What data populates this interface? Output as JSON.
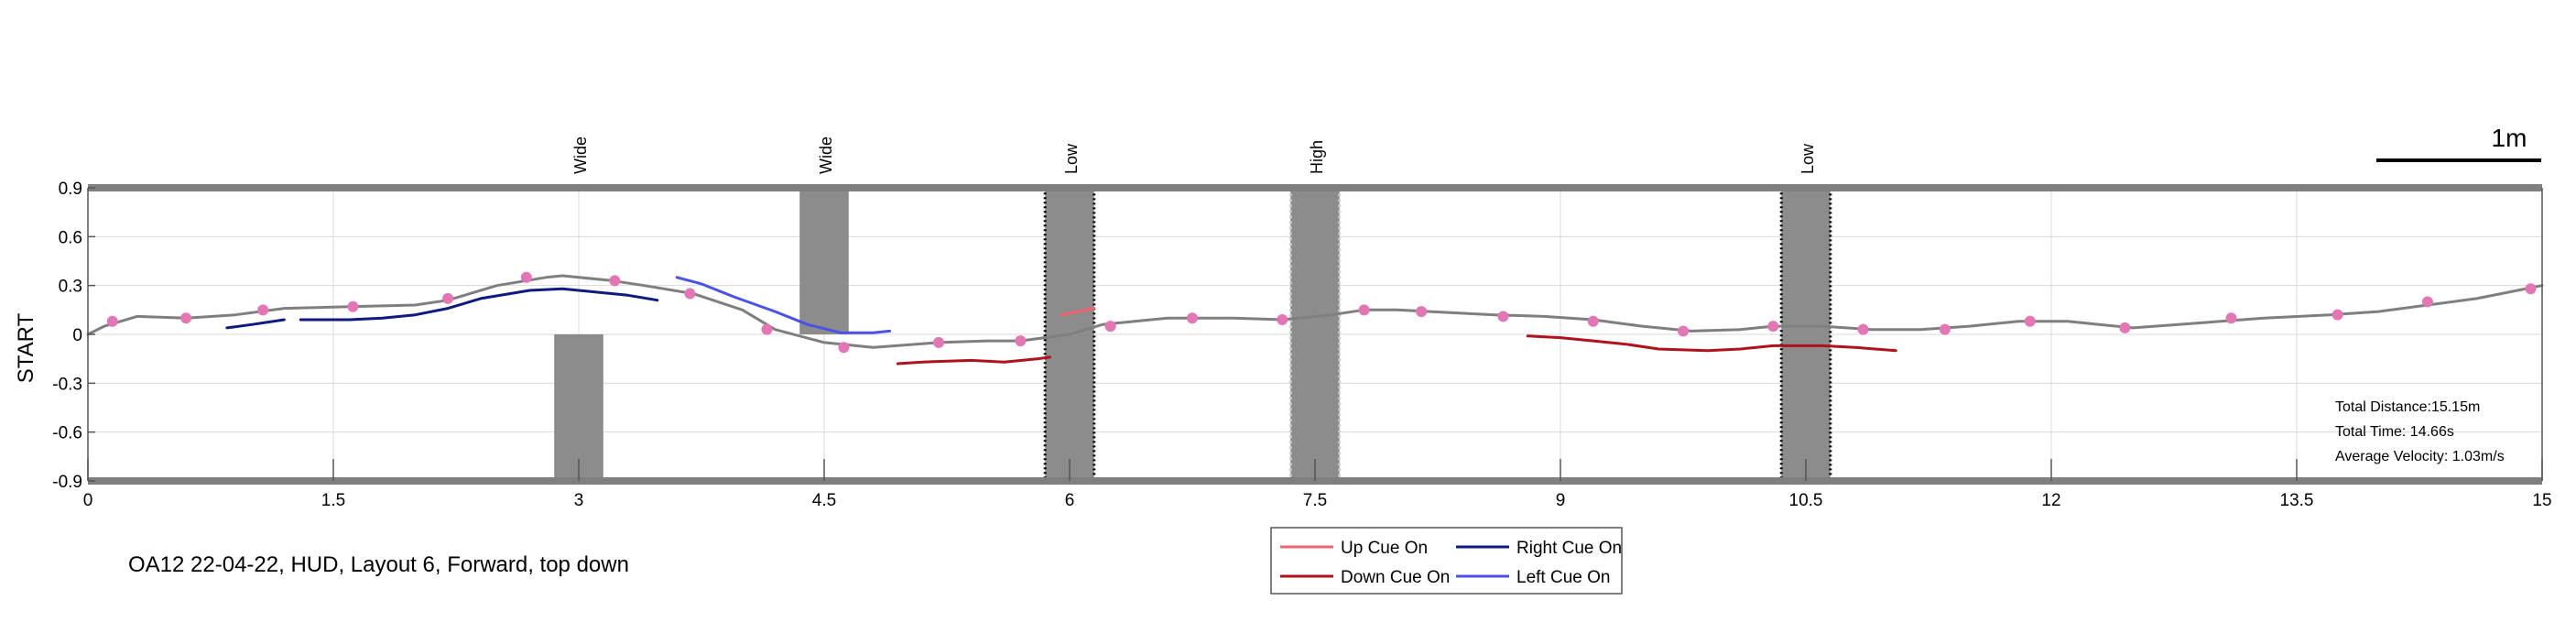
{
  "chart_data": {
    "type": "line",
    "xlim": [
      0,
      15
    ],
    "ylim": [
      -0.9,
      0.9
    ],
    "xticks": [
      "0",
      "1.5",
      "3",
      "4.5",
      "6",
      "7.5",
      "9",
      "10.5",
      "12",
      "13.5",
      "15"
    ],
    "xtick_values": [
      0,
      1.5,
      3,
      4.5,
      6,
      7.5,
      9,
      10.5,
      12,
      13.5,
      15
    ],
    "yticks": [
      "0.9",
      "0.6",
      "0.3",
      "0",
      "-0.3",
      "-0.6",
      "-0.9"
    ],
    "ytick_values": [
      0.9,
      0.6,
      0.3,
      0,
      -0.3,
      -0.6,
      -0.9
    ],
    "ylabel": "START",
    "grid": true,
    "caption": "OA12 22-04-22, HUD, Layout 6, Forward, top down",
    "scale_bar_label": "1m",
    "scale_bar_length": 1,
    "stats": [
      "Total Distance:15.15m",
      "Total Time: 14.66s",
      "Average Velocity: 1.03m/s"
    ],
    "obstacles": [
      {
        "label": "Wide",
        "x": [
          2.85,
          3.15
        ],
        "y": [
          -0.9,
          0.0
        ],
        "style": "plain"
      },
      {
        "label": "Wide",
        "x": [
          4.35,
          4.65
        ],
        "y": [
          0.0,
          0.9
        ],
        "style": "plain"
      },
      {
        "label": "Low",
        "x": [
          5.85,
          6.15
        ],
        "y": [
          -0.9,
          0.9
        ],
        "style": "dotted-dark"
      },
      {
        "label": "High",
        "x": [
          7.35,
          7.65
        ],
        "y": [
          -0.9,
          0.9
        ],
        "style": "dotted-light"
      },
      {
        "label": "Low",
        "x": [
          10.35,
          10.65
        ],
        "y": [
          -0.9,
          0.9
        ],
        "style": "dotted-dark"
      }
    ],
    "series": [
      {
        "name": "",
        "color": "#7f7f7f",
        "points": [
          [
            0.0,
            0.0
          ],
          [
            0.1,
            0.05
          ],
          [
            0.3,
            0.11
          ],
          [
            0.6,
            0.1
          ],
          [
            0.9,
            0.12
          ],
          [
            1.2,
            0.16
          ],
          [
            1.6,
            0.17
          ],
          [
            2.0,
            0.18
          ],
          [
            2.2,
            0.21
          ],
          [
            2.5,
            0.3
          ],
          [
            2.8,
            0.35
          ],
          [
            2.9,
            0.36
          ],
          [
            3.2,
            0.33
          ],
          [
            3.4,
            0.3
          ],
          [
            3.7,
            0.25
          ],
          [
            4.0,
            0.15
          ],
          [
            4.2,
            0.03
          ],
          [
            4.5,
            -0.05
          ],
          [
            4.8,
            -0.08
          ],
          [
            5.2,
            -0.05
          ],
          [
            5.5,
            -0.04
          ],
          [
            5.7,
            -0.04
          ],
          [
            6.0,
            0.0
          ],
          [
            6.2,
            0.06
          ],
          [
            6.6,
            0.1
          ],
          [
            7.0,
            0.1
          ],
          [
            7.3,
            0.09
          ],
          [
            7.6,
            0.12
          ],
          [
            7.8,
            0.15
          ],
          [
            8.0,
            0.15
          ],
          [
            8.2,
            0.14
          ],
          [
            8.6,
            0.12
          ],
          [
            8.9,
            0.11
          ],
          [
            9.2,
            0.09
          ],
          [
            9.5,
            0.05
          ],
          [
            9.8,
            0.02
          ],
          [
            10.1,
            0.03
          ],
          [
            10.3,
            0.05
          ],
          [
            10.6,
            0.05
          ],
          [
            10.9,
            0.03
          ],
          [
            11.2,
            0.03
          ],
          [
            11.5,
            0.05
          ],
          [
            11.8,
            0.08
          ],
          [
            12.1,
            0.08
          ],
          [
            12.5,
            0.04
          ],
          [
            12.9,
            0.07
          ],
          [
            13.3,
            0.1
          ],
          [
            13.7,
            0.12
          ],
          [
            14.0,
            0.14
          ],
          [
            14.3,
            0.18
          ],
          [
            14.6,
            0.22
          ],
          [
            14.85,
            0.27
          ],
          [
            15.0,
            0.3
          ]
        ]
      },
      {
        "name": "Up Cue On",
        "color": "#f0636f",
        "segments": [
          [
            [
              5.95,
              0.12
            ],
            [
              6.05,
              0.14
            ],
            [
              6.15,
              0.16
            ]
          ]
        ]
      },
      {
        "name": "Down Cue On",
        "color": "#b0121b",
        "segments": [
          [
            [
              4.95,
              -0.18
            ],
            [
              5.1,
              -0.17
            ],
            [
              5.4,
              -0.16
            ],
            [
              5.6,
              -0.17
            ],
            [
              5.8,
              -0.15
            ],
            [
              5.88,
              -0.14
            ]
          ],
          [
            [
              8.8,
              -0.01
            ],
            [
              9.0,
              -0.02
            ],
            [
              9.2,
              -0.04
            ],
            [
              9.4,
              -0.06
            ],
            [
              9.6,
              -0.09
            ],
            [
              9.9,
              -0.1
            ],
            [
              10.1,
              -0.09
            ],
            [
              10.3,
              -0.07
            ],
            [
              10.6,
              -0.07
            ],
            [
              10.8,
              -0.08
            ],
            [
              11.05,
              -0.1
            ]
          ]
        ]
      },
      {
        "name": "Right Cue On",
        "color": "#0d1a80",
        "segments": [
          [
            [
              0.85,
              0.04
            ],
            [
              1.0,
              0.06
            ],
            [
              1.2,
              0.09
            ]
          ],
          [
            [
              1.3,
              0.09
            ],
            [
              1.6,
              0.09
            ],
            [
              1.8,
              0.1
            ],
            [
              2.0,
              0.12
            ],
            [
              2.2,
              0.16
            ],
            [
              2.4,
              0.22
            ],
            [
              2.7,
              0.27
            ],
            [
              2.9,
              0.28
            ],
            [
              3.1,
              0.26
            ],
            [
              3.3,
              0.24
            ],
            [
              3.48,
              0.21
            ]
          ]
        ]
      },
      {
        "name": "Left Cue On",
        "color": "#4a52e8",
        "segments": [
          [
            [
              3.6,
              0.35
            ],
            [
              3.75,
              0.31
            ],
            [
              3.95,
              0.23
            ],
            [
              4.2,
              0.14
            ],
            [
              4.4,
              0.06
            ],
            [
              4.6,
              0.01
            ],
            [
              4.8,
              0.01
            ],
            [
              4.9,
              0.02
            ]
          ]
        ]
      }
    ],
    "markers": {
      "color": "#e377b5",
      "points": [
        [
          0.15,
          0.08
        ],
        [
          0.6,
          0.1
        ],
        [
          1.07,
          0.15
        ],
        [
          1.62,
          0.17
        ],
        [
          2.2,
          0.22
        ],
        [
          2.68,
          0.35
        ],
        [
          3.22,
          0.33
        ],
        [
          3.68,
          0.25
        ],
        [
          4.15,
          0.03
        ],
        [
          4.62,
          -0.08
        ],
        [
          5.2,
          -0.05
        ],
        [
          5.7,
          -0.04
        ],
        [
          6.25,
          0.05
        ],
        [
          6.75,
          0.1
        ],
        [
          7.3,
          0.09
        ],
        [
          7.8,
          0.15
        ],
        [
          8.15,
          0.14
        ],
        [
          8.65,
          0.11
        ],
        [
          9.2,
          0.08
        ],
        [
          9.75,
          0.02
        ],
        [
          10.3,
          0.05
        ],
        [
          10.85,
          0.03
        ],
        [
          11.35,
          0.03
        ],
        [
          11.87,
          0.08
        ],
        [
          12.45,
          0.04
        ],
        [
          13.1,
          0.1
        ],
        [
          13.75,
          0.12
        ],
        [
          14.3,
          0.2
        ],
        [
          14.93,
          0.28
        ]
      ]
    },
    "legend": {
      "placement": "bottom-center",
      "entries": [
        {
          "label": "Up Cue On",
          "color": "#f0636f"
        },
        {
          "label": "Right Cue On",
          "color": "#0d1a80"
        },
        {
          "label": "Down Cue On",
          "color": "#b0121b"
        },
        {
          "label": "Left Cue On",
          "color": "#4a52e8"
        }
      ]
    }
  }
}
